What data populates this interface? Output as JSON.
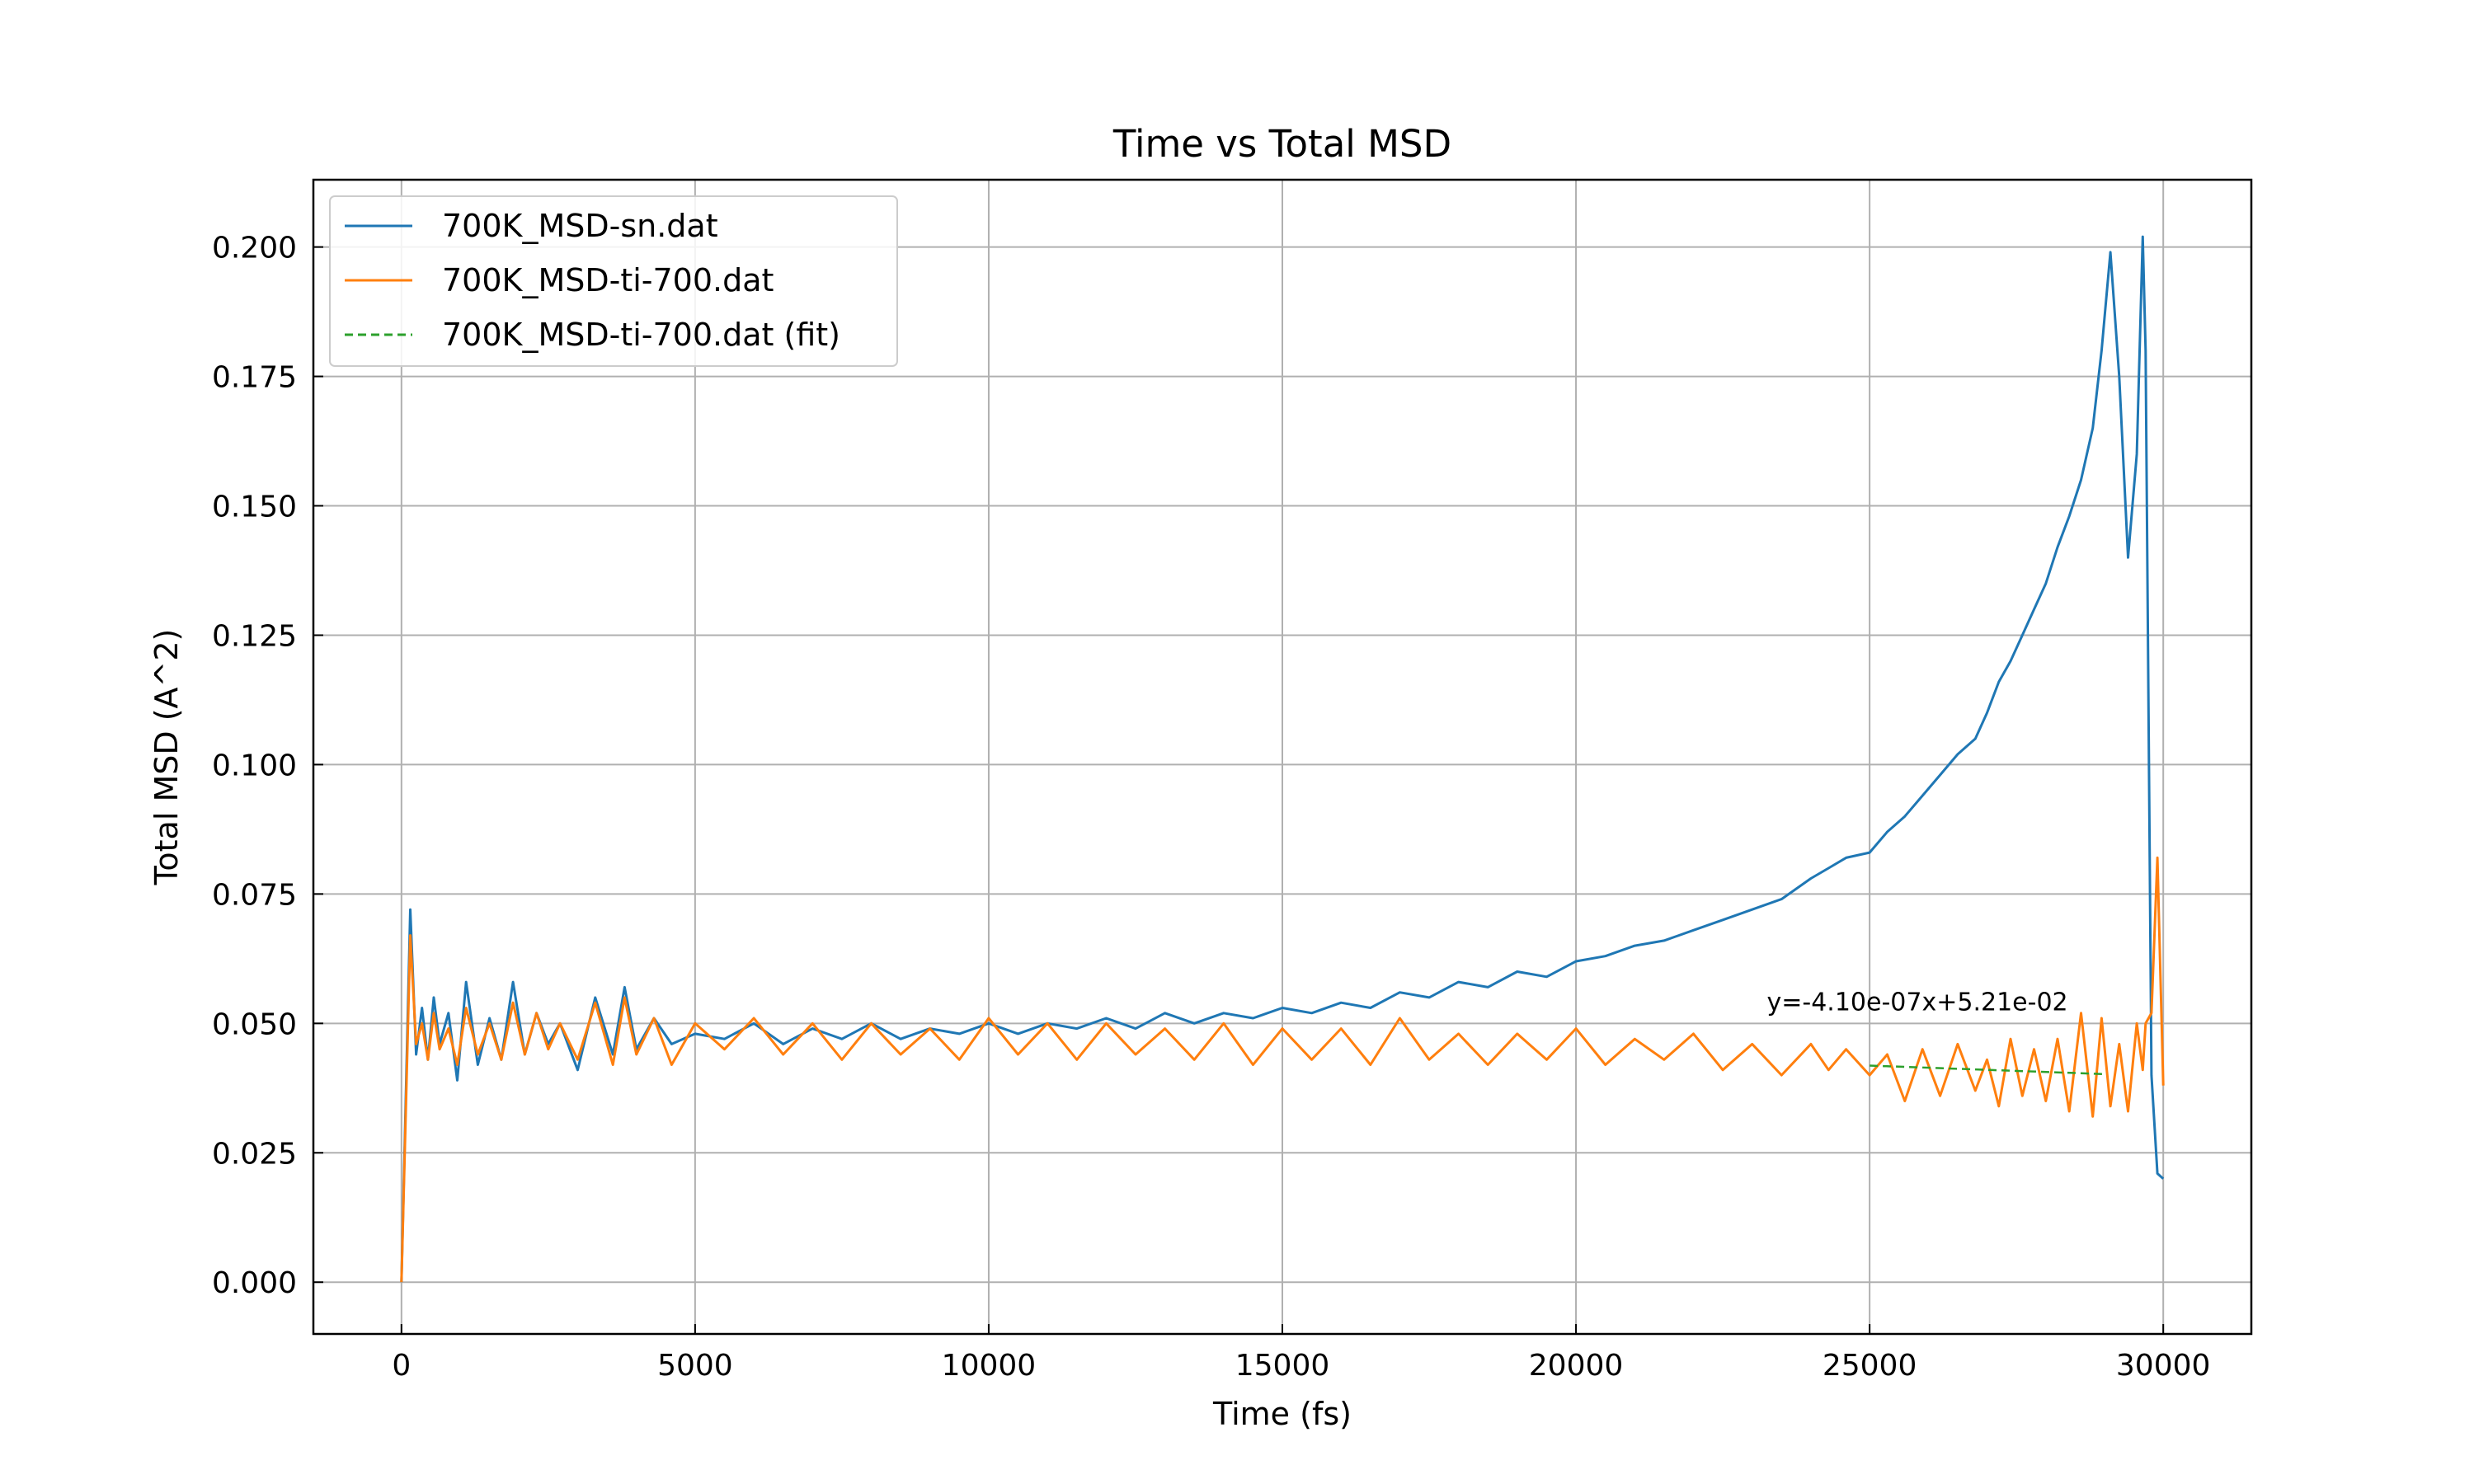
{
  "chart_data": {
    "type": "line",
    "title": "Time vs Total MSD",
    "xlabel": "Time (fs)",
    "ylabel": "Total MSD (A^2)",
    "xlim": [
      -1500,
      31500
    ],
    "ylim": [
      -0.01,
      0.213
    ],
    "grid": true,
    "legend_position": "top-left",
    "x_ticks": [
      0,
      5000,
      10000,
      15000,
      20000,
      25000,
      30000
    ],
    "x_tick_labels": [
      "0",
      "5000",
      "10000",
      "15000",
      "20000",
      "25000",
      "30000"
    ],
    "y_ticks": [
      0.0,
      0.025,
      0.05,
      0.075,
      0.1,
      0.125,
      0.15,
      0.175,
      0.2
    ],
    "y_tick_labels": [
      "0.000",
      "0.025",
      "0.050",
      "0.075",
      "0.100",
      "0.125",
      "0.150",
      "0.175",
      "0.200"
    ],
    "series": [
      {
        "name": "700K_MSD-sn.dat",
        "color": "#1f77b4",
        "style": "solid",
        "x": [
          0,
          150,
          250,
          350,
          450,
          550,
          650,
          800,
          950,
          1100,
          1300,
          1500,
          1700,
          1900,
          2100,
          2300,
          2500,
          2700,
          3000,
          3300,
          3600,
          3800,
          4000,
          4300,
          4600,
          5000,
          5500,
          6000,
          6500,
          7000,
          7500,
          8000,
          8500,
          9000,
          9500,
          10000,
          10500,
          11000,
          11500,
          12000,
          12500,
          13000,
          13500,
          14000,
          14500,
          15000,
          15500,
          16000,
          16500,
          17000,
          17500,
          18000,
          18500,
          19000,
          19500,
          20000,
          20500,
          21000,
          21500,
          22000,
          22500,
          23000,
          23500,
          24000,
          24300,
          24600,
          25000,
          25300,
          25600,
          25900,
          26200,
          26500,
          26800,
          27000,
          27200,
          27400,
          27600,
          27800,
          28000,
          28200,
          28400,
          28600,
          28800,
          28950,
          29100,
          29250,
          29400,
          29550,
          29650,
          29700,
          29800,
          29900,
          30000
        ],
        "y": [
          0.0,
          0.072,
          0.044,
          0.053,
          0.043,
          0.055,
          0.046,
          0.052,
          0.039,
          0.058,
          0.042,
          0.051,
          0.043,
          0.058,
          0.044,
          0.052,
          0.046,
          0.05,
          0.041,
          0.055,
          0.044,
          0.057,
          0.045,
          0.051,
          0.046,
          0.048,
          0.047,
          0.05,
          0.046,
          0.049,
          0.047,
          0.05,
          0.047,
          0.049,
          0.048,
          0.05,
          0.048,
          0.05,
          0.049,
          0.051,
          0.049,
          0.052,
          0.05,
          0.052,
          0.051,
          0.053,
          0.052,
          0.054,
          0.053,
          0.056,
          0.055,
          0.058,
          0.057,
          0.06,
          0.059,
          0.062,
          0.063,
          0.065,
          0.066,
          0.068,
          0.07,
          0.072,
          0.074,
          0.078,
          0.08,
          0.082,
          0.083,
          0.087,
          0.09,
          0.094,
          0.098,
          0.102,
          0.105,
          0.11,
          0.116,
          0.12,
          0.125,
          0.13,
          0.135,
          0.142,
          0.148,
          0.155,
          0.165,
          0.18,
          0.199,
          0.175,
          0.14,
          0.16,
          0.202,
          0.18,
          0.04,
          0.021,
          0.02
        ]
      },
      {
        "name": "700K_MSD-ti-700.dat",
        "color": "#ff7f0e",
        "style": "solid",
        "x": [
          0,
          150,
          250,
          350,
          450,
          550,
          650,
          800,
          950,
          1100,
          1300,
          1500,
          1700,
          1900,
          2100,
          2300,
          2500,
          2700,
          3000,
          3300,
          3600,
          3800,
          4000,
          4300,
          4600,
          5000,
          5500,
          6000,
          6500,
          7000,
          7500,
          8000,
          8500,
          9000,
          9500,
          10000,
          10500,
          11000,
          11500,
          12000,
          12500,
          13000,
          13500,
          14000,
          14500,
          15000,
          15500,
          16000,
          16500,
          17000,
          17500,
          18000,
          18500,
          19000,
          19500,
          20000,
          20500,
          21000,
          21500,
          22000,
          22500,
          23000,
          23500,
          24000,
          24300,
          24600,
          25000,
          25300,
          25600,
          25900,
          26200,
          26500,
          26800,
          27000,
          27200,
          27400,
          27600,
          27800,
          28000,
          28200,
          28400,
          28600,
          28800,
          28950,
          29100,
          29250,
          29400,
          29550,
          29650,
          29700,
          29800,
          29900,
          30000
        ],
        "y": [
          0.0,
          0.067,
          0.046,
          0.05,
          0.043,
          0.052,
          0.045,
          0.049,
          0.042,
          0.053,
          0.044,
          0.05,
          0.043,
          0.054,
          0.044,
          0.052,
          0.045,
          0.05,
          0.043,
          0.054,
          0.042,
          0.055,
          0.044,
          0.051,
          0.042,
          0.05,
          0.045,
          0.051,
          0.044,
          0.05,
          0.043,
          0.05,
          0.044,
          0.049,
          0.043,
          0.051,
          0.044,
          0.05,
          0.043,
          0.05,
          0.044,
          0.049,
          0.043,
          0.05,
          0.042,
          0.049,
          0.043,
          0.049,
          0.042,
          0.051,
          0.043,
          0.048,
          0.042,
          0.048,
          0.043,
          0.049,
          0.042,
          0.047,
          0.043,
          0.048,
          0.041,
          0.046,
          0.04,
          0.046,
          0.041,
          0.045,
          0.04,
          0.044,
          0.035,
          0.045,
          0.036,
          0.046,
          0.037,
          0.043,
          0.034,
          0.047,
          0.036,
          0.045,
          0.035,
          0.047,
          0.033,
          0.052,
          0.032,
          0.051,
          0.034,
          0.046,
          0.033,
          0.05,
          0.041,
          0.05,
          0.052,
          0.082,
          0.038
        ]
      },
      {
        "name": "700K_MSD-ti-700.dat (fit)",
        "color": "#2ca02c",
        "style": "dashed",
        "x": [
          25000,
          29000
        ],
        "y": [
          0.04185,
          0.0402
        ]
      }
    ],
    "annotations": [
      {
        "text": "y=-4.10e-07x+5.21e-02",
        "x": 23250,
        "y": 0.0525
      }
    ]
  }
}
